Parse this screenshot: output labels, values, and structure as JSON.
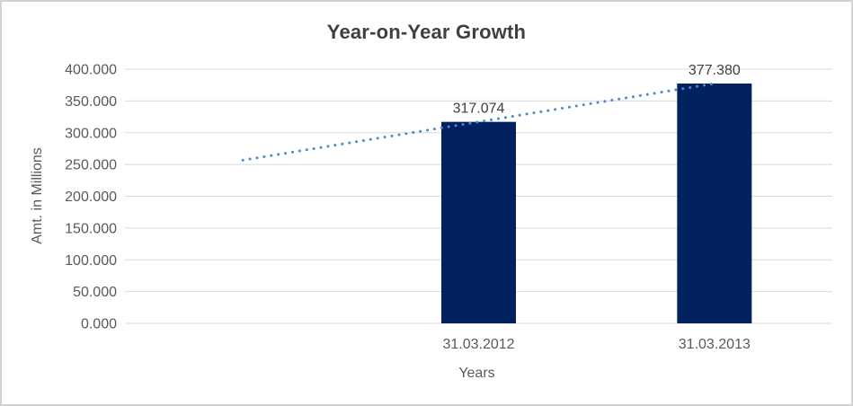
{
  "chart_data": {
    "type": "bar",
    "title": "Year-on-Year Growth",
    "xlabel": "Years",
    "ylabel": "Amt. in Millions",
    "categories": [
      "31.03.2012",
      "31.03.2013"
    ],
    "values": [
      317.074,
      377.38
    ],
    "data_labels": [
      "317.074",
      "377.380"
    ],
    "ylim": [
      0,
      400
    ],
    "ytick_values": [
      0,
      50,
      100,
      150,
      200,
      250,
      300,
      350,
      400
    ],
    "ytick_labels": [
      "0.000",
      "50.000",
      "100.000",
      "150.000",
      "200.000",
      "250.000",
      "300.000",
      "350.000",
      "400.000"
    ],
    "grid": true,
    "legend": "none",
    "layout_hints": {
      "category_slots": 3,
      "bar_slots": [
        1,
        2
      ],
      "first_slot_empty": true
    },
    "trendline": {
      "type": "linear",
      "line_style": "dotted",
      "color": "#4f87d0",
      "points": [
        {
          "slot": 0,
          "value": 256.8
        },
        {
          "slot": 2,
          "value": 377.38
        }
      ]
    },
    "colors": {
      "bar": "#02215f",
      "gridline": "#d9d9d9",
      "axis_line": "#d9d9d9",
      "axis_text": "#595959",
      "title_text": "#3f3f3f",
      "label_text": "#404040",
      "background": "#ffffff",
      "frame_border": "#d2d2d2"
    }
  }
}
